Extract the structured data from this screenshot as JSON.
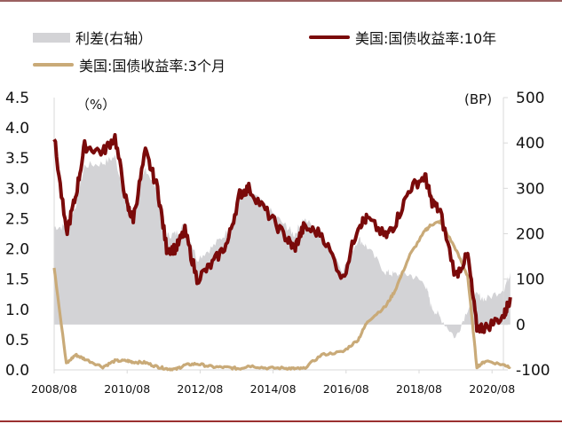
{
  "legend": {
    "spread": {
      "label": "利差(右轴）",
      "color": "#d3d3d6"
    },
    "us10y": {
      "label": "美国:国债收益率:10年",
      "color": "#7a0a0a"
    },
    "us3m": {
      "label": "美国:国债收益率:3个月",
      "color": "#c9aa78"
    }
  },
  "axes": {
    "left_unit": "（%）",
    "right_unit": "(BP)",
    "left_ticks": [
      "4.5",
      "4.0",
      "3.5",
      "3.0",
      "2.5",
      "2.0",
      "1.5",
      "1.0",
      "0.5",
      "0.0"
    ],
    "right_ticks": [
      "500",
      "400",
      "300",
      "200",
      "100",
      "0",
      "-100"
    ],
    "x_ticks": [
      "2008/08",
      "2010/08",
      "2012/08",
      "2014/08",
      "2016/08",
      "2018/08",
      "2020/08"
    ]
  },
  "chart_data": {
    "type": "line",
    "title": "",
    "xlabel": "",
    "ylabel": "%",
    "ylabel_right": "BP",
    "ylim": [
      0,
      4.5
    ],
    "ylim_right": [
      -100,
      500
    ],
    "x": [
      "2008/08",
      "2008/12",
      "2009/03",
      "2009/06",
      "2009/12",
      "2010/04",
      "2010/08",
      "2010/10",
      "2011/02",
      "2011/06",
      "2011/09",
      "2011/12",
      "2012/03",
      "2012/07",
      "2012/12",
      "2013/05",
      "2013/09",
      "2013/12",
      "2014/06",
      "2014/12",
      "2015/03",
      "2015/06",
      "2015/12",
      "2016/07",
      "2016/12",
      "2017/03",
      "2017/09",
      "2017/12",
      "2018/05",
      "2018/10",
      "2018/12",
      "2019/03",
      "2019/08",
      "2019/12",
      "2020/03",
      "2020/06",
      "2020/12",
      "2021/02"
    ],
    "series": [
      {
        "name": "美国:国债收益率:10年",
        "axis": "left",
        "values": [
          3.85,
          2.25,
          2.85,
          3.7,
          3.6,
          3.85,
          2.7,
          2.5,
          3.6,
          3.0,
          2.0,
          2.0,
          2.3,
          1.5,
          1.75,
          2.1,
          2.9,
          3.0,
          2.6,
          2.2,
          2.0,
          2.35,
          2.25,
          1.5,
          2.4,
          2.5,
          2.2,
          2.4,
          3.0,
          3.2,
          2.8,
          2.6,
          1.55,
          1.9,
          0.7,
          0.7,
          0.9,
          1.2
        ]
      },
      {
        "name": "美国:国债收益率:3个月",
        "axis": "left",
        "values": [
          1.7,
          0.1,
          0.25,
          0.18,
          0.05,
          0.15,
          0.15,
          0.13,
          0.12,
          0.05,
          0.02,
          0.01,
          0.08,
          0.1,
          0.05,
          0.04,
          0.02,
          0.07,
          0.03,
          0.03,
          0.02,
          0.02,
          0.25,
          0.3,
          0.5,
          0.8,
          1.05,
          1.3,
          1.9,
          2.3,
          2.4,
          2.45,
          2.0,
          1.55,
          0.05,
          0.15,
          0.08,
          0.05
        ]
      },
      {
        "name": "利差(右轴)",
        "axis": "right",
        "values": [
          215,
          215,
          260,
          350,
          355,
          370,
          255,
          240,
          345,
          295,
          195,
          200,
          220,
          145,
          170,
          205,
          285,
          295,
          257,
          218,
          198,
          233,
          200,
          120,
          190,
          170,
          115,
          110,
          110,
          90,
          40,
          15,
          -30,
          35,
          65,
          55,
          80,
          115
        ]
      }
    ],
    "legend_position": "top",
    "grid": false
  }
}
